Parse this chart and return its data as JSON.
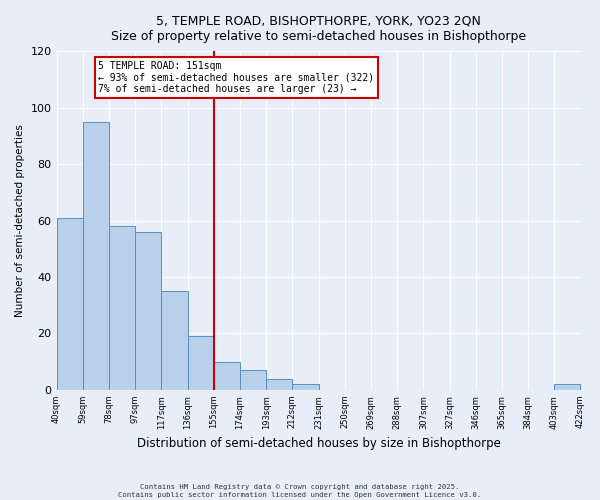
{
  "title_line1": "5, TEMPLE ROAD, BISHOPTHORPE, YORK, YO23 2QN",
  "title_line2": "Size of property relative to semi-detached houses in Bishopthorpe",
  "bar_values": [
    61,
    95,
    58,
    56,
    35,
    19,
    10,
    7,
    4,
    2,
    0,
    0,
    0,
    0,
    0,
    0,
    0,
    0,
    0,
    2
  ],
  "bin_labels": [
    "40sqm",
    "59sqm",
    "78sqm",
    "97sqm",
    "117sqm",
    "136sqm",
    "155sqm",
    "174sqm",
    "193sqm",
    "212sqm",
    "231sqm",
    "250sqm",
    "269sqm",
    "288sqm",
    "307sqm",
    "327sqm",
    "346sqm",
    "365sqm",
    "384sqm",
    "403sqm",
    "422sqm"
  ],
  "bar_color": "#b8d0ea",
  "bar_edge_color": "#5a8fc0",
  "ylabel": "Number of semi-detached properties",
  "xlabel": "Distribution of semi-detached houses by size in Bishopthorpe",
  "ylim": [
    0,
    120
  ],
  "yticks": [
    0,
    20,
    40,
    60,
    80,
    100,
    120
  ],
  "vline_x_bar_index": 6,
  "vline_color": "#cc0000",
  "annotation_title": "5 TEMPLE ROAD: 151sqm",
  "annotation_line1": "← 93% of semi-detached houses are smaller (322)",
  "annotation_line2": "7% of semi-detached houses are larger (23) →",
  "annotation_box_color": "#ffffff",
  "annotation_box_edge": "#cc0000",
  "footer_line1": "Contains HM Land Registry data © Crown copyright and database right 2025.",
  "footer_line2": "Contains public sector information licensed under the Open Government Licence v3.0.",
  "bg_color": "#e8eef8",
  "plot_bg_color": "#e8eef8",
  "grid_color": "#ffffff"
}
